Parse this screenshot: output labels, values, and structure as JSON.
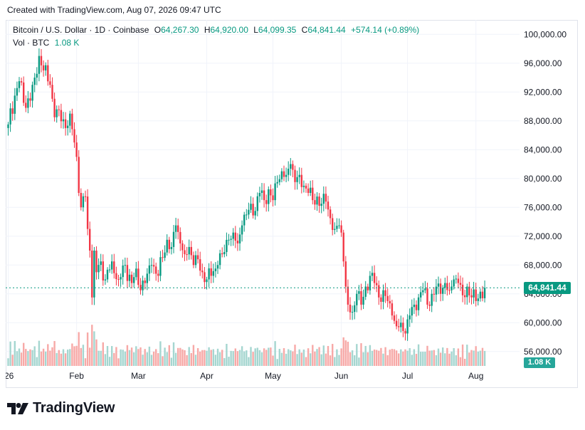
{
  "credit": "Created with TradingView.com, Aug 07, 2026 09:47 UTC",
  "legend": {
    "symbol": "Bitcoin / U.S. Dollar · 1D · Coinbase",
    "o_label": "O",
    "o_value": "64,267.30",
    "h_label": "H",
    "h_value": "64,920.00",
    "l_label": "L",
    "l_value": "64,099.35",
    "c_label": "C",
    "c_value": "64,841.44",
    "change": "+574.14 (+0.89%)",
    "vol_label": "Vol · BTC",
    "vol_value": "1.08 K"
  },
  "last_price_label": "64,841.44",
  "volume_badge": "1.08 K",
  "logo_text": "TradingView",
  "colors": {
    "up": "#089981",
    "down": "#f23645",
    "vol_up": "#a5d6d0",
    "vol_down": "#f7a9a7",
    "grid": "#f0f3fa"
  },
  "chart_data": {
    "type": "candlestick",
    "title": "Bitcoin / U.S. Dollar · 1D · Coinbase",
    "ylim": [
      54000,
      102000
    ],
    "y_ticks": [
      100000,
      96000,
      92000,
      88000,
      84000,
      80000,
      76000,
      72000,
      68000,
      64000,
      60000,
      56000
    ],
    "y_tick_labels": [
      "100,000.00",
      "96,000.00",
      "92,000.00",
      "88,000.00",
      "84,000.00",
      "80,000.00",
      "76,000.00",
      "72,000.00",
      "68,000.00",
      "64,000.00",
      "60,000.00",
      "56,000.00"
    ],
    "x_tick_labels": [
      {
        "label": "'26",
        "day": 0
      },
      {
        "label": "Feb",
        "day": 31
      },
      {
        "label": "Mar",
        "day": 59
      },
      {
        "label": "Apr",
        "day": 90
      },
      {
        "label": "May",
        "day": 120
      },
      {
        "label": "Jun",
        "day": 151
      },
      {
        "label": "Jul",
        "day": 181
      },
      {
        "label": "Aug",
        "day": 212
      }
    ],
    "grid": true,
    "last_close": 64841.44,
    "close_anchors": [
      {
        "day": 0,
        "close": 87500
      },
      {
        "day": 3,
        "close": 91500
      },
      {
        "day": 5,
        "close": 93500
      },
      {
        "day": 7,
        "close": 90500
      },
      {
        "day": 10,
        "close": 90800
      },
      {
        "day": 12,
        "close": 94000
      },
      {
        "day": 14,
        "close": 97000
      },
      {
        "day": 16,
        "close": 95000
      },
      {
        "day": 19,
        "close": 93000
      },
      {
        "day": 21,
        "close": 88500
      },
      {
        "day": 23,
        "close": 89500
      },
      {
        "day": 26,
        "close": 87000
      },
      {
        "day": 28,
        "close": 89000
      },
      {
        "day": 30,
        "close": 85000
      },
      {
        "day": 31,
        "close": 83000
      },
      {
        "day": 32,
        "close": 78000
      },
      {
        "day": 33,
        "close": 76000
      },
      {
        "day": 35,
        "close": 77500
      },
      {
        "day": 36,
        "close": 73000
      },
      {
        "day": 37,
        "close": 70000
      },
      {
        "day": 38,
        "close": 63500
      },
      {
        "day": 39,
        "close": 70000
      },
      {
        "day": 40,
        "close": 67000
      },
      {
        "day": 42,
        "close": 68500
      },
      {
        "day": 44,
        "close": 66000
      },
      {
        "day": 47,
        "close": 68500
      },
      {
        "day": 50,
        "close": 66000
      },
      {
        "day": 53,
        "close": 68000
      },
      {
        "day": 56,
        "close": 65500
      },
      {
        "day": 58,
        "close": 67500
      },
      {
        "day": 60,
        "close": 64500
      },
      {
        "day": 63,
        "close": 66800
      },
      {
        "day": 65,
        "close": 68000
      },
      {
        "day": 68,
        "close": 66500
      },
      {
        "day": 70,
        "close": 69000
      },
      {
        "day": 72,
        "close": 71500
      },
      {
        "day": 74,
        "close": 70500
      },
      {
        "day": 76,
        "close": 73500
      },
      {
        "day": 78,
        "close": 71000
      },
      {
        "day": 80,
        "close": 69500
      },
      {
        "day": 82,
        "close": 70500
      },
      {
        "day": 84,
        "close": 68000
      },
      {
        "day": 86,
        "close": 68800
      },
      {
        "day": 88,
        "close": 67000
      },
      {
        "day": 90,
        "close": 66000
      },
      {
        "day": 92,
        "close": 66500
      },
      {
        "day": 95,
        "close": 68000
      },
      {
        "day": 97,
        "close": 69500
      },
      {
        "day": 100,
        "close": 71500
      },
      {
        "day": 102,
        "close": 72500
      },
      {
        "day": 104,
        "close": 71000
      },
      {
        "day": 106,
        "close": 73500
      },
      {
        "day": 108,
        "close": 75000
      },
      {
        "day": 110,
        "close": 76500
      },
      {
        "day": 112,
        "close": 75500
      },
      {
        "day": 114,
        "close": 78000
      },
      {
        "day": 116,
        "close": 77000
      },
      {
        "day": 118,
        "close": 78500
      },
      {
        "day": 120,
        "close": 77000
      },
      {
        "day": 122,
        "close": 79500
      },
      {
        "day": 124,
        "close": 81000
      },
      {
        "day": 126,
        "close": 80500
      },
      {
        "day": 128,
        "close": 82000
      },
      {
        "day": 130,
        "close": 79500
      },
      {
        "day": 132,
        "close": 80500
      },
      {
        "day": 134,
        "close": 79000
      },
      {
        "day": 136,
        "close": 78000
      },
      {
        "day": 138,
        "close": 77000
      },
      {
        "day": 140,
        "close": 77500
      },
      {
        "day": 142,
        "close": 76500
      },
      {
        "day": 144,
        "close": 76800
      },
      {
        "day": 146,
        "close": 74500
      },
      {
        "day": 148,
        "close": 73000
      },
      {
        "day": 150,
        "close": 73500
      },
      {
        "day": 151,
        "close": 72500
      },
      {
        "day": 152,
        "close": 68500
      },
      {
        "day": 153,
        "close": 65000
      },
      {
        "day": 154,
        "close": 62500
      },
      {
        "day": 156,
        "close": 61500
      },
      {
        "day": 158,
        "close": 64000
      },
      {
        "day": 160,
        "close": 62500
      },
      {
        "day": 162,
        "close": 65000
      },
      {
        "day": 164,
        "close": 66500
      },
      {
        "day": 166,
        "close": 65500
      },
      {
        "day": 168,
        "close": 63500
      },
      {
        "day": 170,
        "close": 64500
      },
      {
        "day": 172,
        "close": 63000
      },
      {
        "day": 174,
        "close": 61000
      },
      {
        "day": 176,
        "close": 59500
      },
      {
        "day": 178,
        "close": 60000
      },
      {
        "day": 180,
        "close": 58500
      },
      {
        "day": 182,
        "close": 61000
      },
      {
        "day": 184,
        "close": 62500
      },
      {
        "day": 186,
        "close": 63500
      },
      {
        "day": 188,
        "close": 64500
      },
      {
        "day": 190,
        "close": 62500
      },
      {
        "day": 192,
        "close": 64000
      },
      {
        "day": 194,
        "close": 65000
      },
      {
        "day": 196,
        "close": 64000
      },
      {
        "day": 198,
        "close": 65500
      },
      {
        "day": 200,
        "close": 64500
      },
      {
        "day": 202,
        "close": 66000
      },
      {
        "day": 204,
        "close": 65500
      },
      {
        "day": 206,
        "close": 63800
      },
      {
        "day": 208,
        "close": 65000
      },
      {
        "day": 210,
        "close": 63500
      },
      {
        "day": 212,
        "close": 63000
      },
      {
        "day": 214,
        "close": 64300
      },
      {
        "day": 216,
        "close": 64841
      }
    ]
  }
}
